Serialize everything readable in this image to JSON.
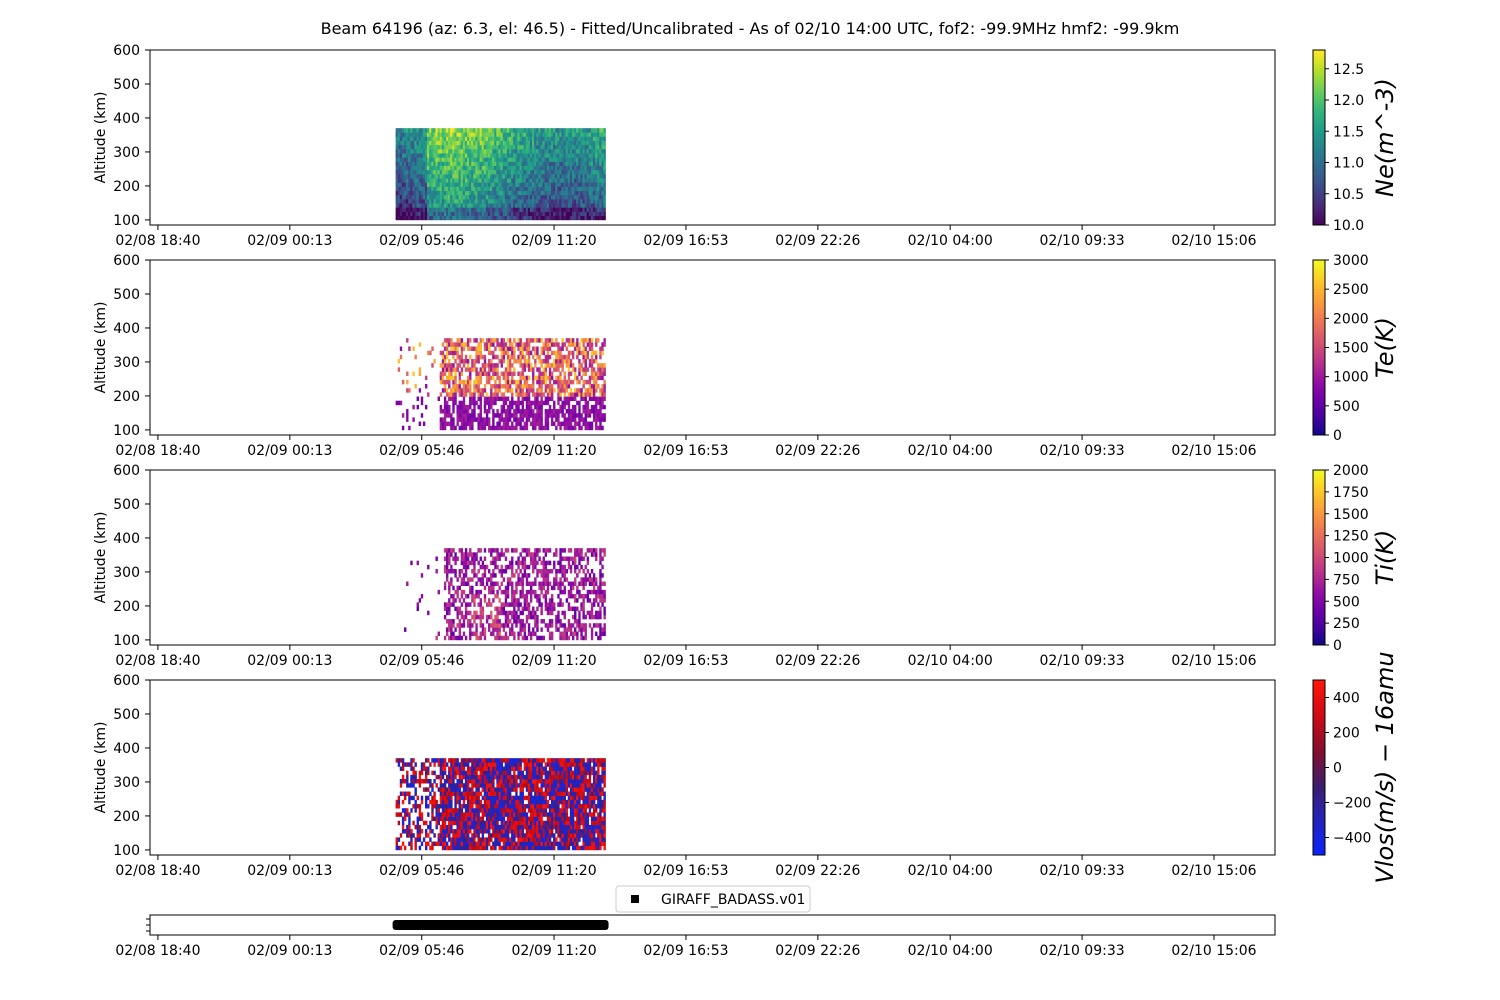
{
  "figure": {
    "title": "Beam 64196 (az: 6.3, el: 46.5) - Fitted/Uncalibrated - As of 02/10 14:00 UTC, fof2: -99.9MHz  hmf2: -99.9km"
  },
  "chart_data": [
    {
      "type": "heatmap",
      "name": "Ne",
      "ylabel": "Altitude (km)",
      "yticks": [
        100,
        200,
        300,
        400,
        500,
        600
      ],
      "ylim": [
        85,
        600
      ],
      "xticks": [
        "02/08 18:40",
        "02/09 00:13",
        "02/09 05:46",
        "02/09 11:20",
        "02/09 16:53",
        "02/09 22:26",
        "02/10 04:00",
        "02/10 09:33",
        "02/10 15:06"
      ],
      "xlim": [
        "02/08 18:20",
        "02/10 17:40"
      ],
      "data_time_range": [
        "02/09 04:40",
        "02/09 13:30"
      ],
      "data_alt_range": [
        100,
        370
      ],
      "colorbar": {
        "label": "Ne(m^-3)",
        "cmap": "viridis",
        "range": [
          10.0,
          12.8
        ],
        "ticks": [
          "10.0",
          "10.5",
          "11.0",
          "11.5",
          "12.0",
          "12.5"
        ],
        "tick_values": [
          10.0,
          10.5,
          11.0,
          11.5,
          12.0,
          12.5
        ]
      }
    },
    {
      "type": "heatmap",
      "name": "Te",
      "ylabel": "Altitude (km)",
      "yticks": [
        100,
        200,
        300,
        400,
        500,
        600
      ],
      "ylim": [
        85,
        600
      ],
      "xticks": [
        "02/08 18:40",
        "02/09 00:13",
        "02/09 05:46",
        "02/09 11:20",
        "02/09 16:53",
        "02/09 22:26",
        "02/10 04:00",
        "02/10 09:33",
        "02/10 15:06"
      ],
      "xlim": [
        "02/08 18:20",
        "02/10 17:40"
      ],
      "data_time_range": [
        "02/09 04:40",
        "02/09 13:30"
      ],
      "data_alt_range": [
        100,
        370
      ],
      "colorbar": {
        "label": "Te(K)",
        "cmap": "plasma",
        "range": [
          0,
          3000
        ],
        "ticks": [
          "0",
          "500",
          "1000",
          "1500",
          "2000",
          "2500",
          "3000"
        ],
        "tick_values": [
          0,
          500,
          1000,
          1500,
          2000,
          2500,
          3000
        ]
      }
    },
    {
      "type": "heatmap",
      "name": "Ti",
      "ylabel": "Altitude (km)",
      "yticks": [
        100,
        200,
        300,
        400,
        500,
        600
      ],
      "ylim": [
        85,
        600
      ],
      "xticks": [
        "02/08 18:40",
        "02/09 00:13",
        "02/09 05:46",
        "02/09 11:20",
        "02/09 16:53",
        "02/09 22:26",
        "02/10 04:00",
        "02/10 09:33",
        "02/10 15:06"
      ],
      "xlim": [
        "02/08 18:20",
        "02/10 17:40"
      ],
      "data_time_range": [
        "02/09 04:40",
        "02/09 13:30"
      ],
      "data_alt_range": [
        100,
        370
      ],
      "colorbar": {
        "label": "Ti(K)",
        "cmap": "plasma",
        "range": [
          0,
          2000
        ],
        "ticks": [
          "0",
          "250",
          "500",
          "750",
          "1000",
          "1250",
          "1500",
          "1750",
          "2000"
        ],
        "tick_values": [
          0,
          250,
          500,
          750,
          1000,
          1250,
          1500,
          1750,
          2000
        ]
      }
    },
    {
      "type": "heatmap",
      "name": "Vlos",
      "ylabel": "Altitude (km)",
      "yticks": [
        100,
        200,
        300,
        400,
        500,
        600
      ],
      "ylim": [
        85,
        600
      ],
      "xticks": [
        "02/08 18:40",
        "02/09 00:13",
        "02/09 05:46",
        "02/09 11:20",
        "02/09 16:53",
        "02/09 22:26",
        "02/10 04:00",
        "02/10 09:33",
        "02/10 15:06"
      ],
      "xlim": [
        "02/08 18:20",
        "02/10 17:40"
      ],
      "data_time_range": [
        "02/09 04:40",
        "02/09 13:30"
      ],
      "data_alt_range": [
        100,
        370
      ],
      "colorbar": {
        "label": "Vlos(m/s) − 16amu",
        "cmap": "bwr-dark",
        "range": [
          -500,
          500
        ],
        "ticks": [
          "−400",
          "−200",
          "0",
          "200",
          "400"
        ],
        "tick_values": [
          -400,
          -200,
          0,
          200,
          400
        ]
      }
    },
    {
      "type": "bar",
      "name": "mode-timeline",
      "legend": {
        "entries": [
          "GIRAFF_BADASS.v01"
        ],
        "placement": "top-center"
      },
      "xticks": [
        "02/08 18:40",
        "02/09 00:13",
        "02/09 05:46",
        "02/09 11:20",
        "02/09 16:53",
        "02/09 22:26",
        "02/10 04:00",
        "02/10 09:33",
        "02/10 15:06"
      ],
      "xlim": [
        "02/08 18:20",
        "02/10 17:40"
      ],
      "segments": [
        {
          "start": "02/09 04:40",
          "end": "02/09 13:30",
          "mode": "GIRAFF_BADASS.v01"
        }
      ]
    }
  ]
}
